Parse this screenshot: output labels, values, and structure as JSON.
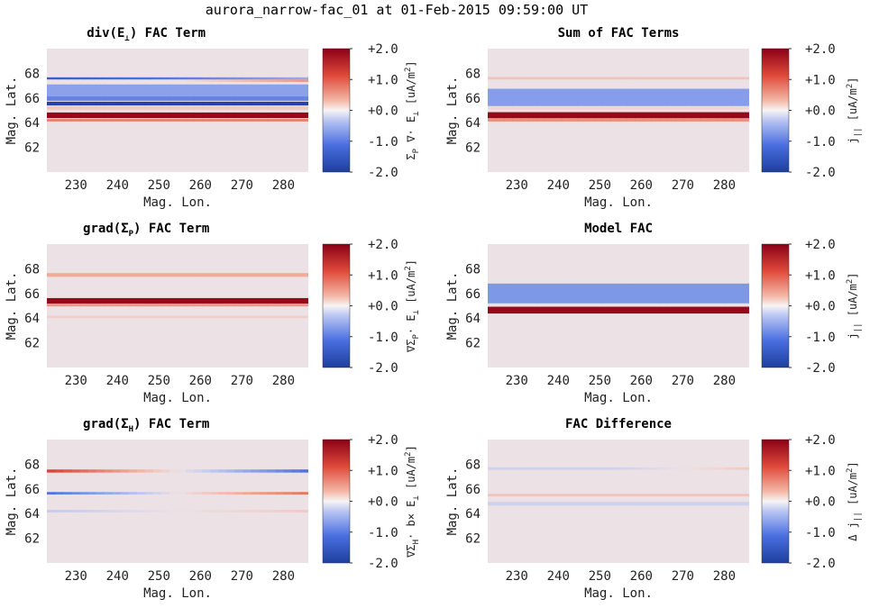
{
  "figure_title": "aurora_narrow-fac_01 at 01-Feb-2015 09:59:00 UT",
  "colors": {
    "background_plot": "#ece1e5",
    "blue_dark": "#1d3f9e",
    "red_dark": "#8b0016",
    "white_mid": "#f7f4f4"
  },
  "chart_data": [
    {
      "type": "heatmap",
      "title": "div(E⊥) FAC Term",
      "title_main": "div(E",
      "title_sub": "⊥",
      "title_rest": ") FAC Term",
      "xlabel": "Mag. Lon.",
      "ylabel": "Mag. Lat.",
      "xticks": [
        230,
        240,
        250,
        260,
        270,
        280
      ],
      "yticks": [
        62,
        64,
        66,
        68
      ],
      "xlim": [
        223,
        286
      ],
      "ylim": [
        60,
        70
      ],
      "clim": [
        -2.0,
        2.0
      ],
      "cbar_ticks": [
        "+2.0",
        "+1.0",
        "+0.0",
        "-1.0",
        "-2.0"
      ],
      "cbar_label": "Σ_P ∇· E_⊥ [uA/m^2]",
      "cbar_label_parts": [
        "Σ",
        "P",
        " ∇· E",
        "⊥",
        " [uA/m",
        "2",
        "]"
      ],
      "bands": [
        {
          "lat": 67.55,
          "width": 0.25,
          "value": -1.1,
          "west_value": -1.5,
          "east_value": -0.6
        },
        {
          "lat": 67.4,
          "width": 0.2,
          "value": 0.0,
          "east_value": 0.6
        },
        {
          "lat": 66.6,
          "width": 1.0,
          "value": -0.7
        },
        {
          "lat": 65.95,
          "width": 0.35,
          "value": -1.0
        },
        {
          "lat": 65.55,
          "width": 0.3,
          "value": -1.9
        },
        {
          "lat": 65.2,
          "width": 0.3,
          "value": 0.2
        },
        {
          "lat": 64.6,
          "width": 0.45,
          "value": 1.9
        },
        {
          "lat": 64.2,
          "width": 0.2,
          "value": 0.8
        }
      ]
    },
    {
      "type": "heatmap",
      "title": "Sum of FAC Terms",
      "title_main": "Sum of FAC Terms",
      "title_sub": "",
      "title_rest": "",
      "xlabel": "Mag. Lon.",
      "ylabel": "Mag. Lat.",
      "xticks": [
        230,
        240,
        250,
        260,
        270,
        280
      ],
      "yticks": [
        62,
        64,
        66,
        68
      ],
      "xlim": [
        223,
        286
      ],
      "ylim": [
        60,
        70
      ],
      "clim": [
        -2.0,
        2.0
      ],
      "cbar_ticks": [
        "+2.0",
        "+1.0",
        "+0.0",
        "-1.0",
        "-2.0"
      ],
      "cbar_label": "j_|| [uA/m^2]",
      "cbar_label_parts": [
        "j",
        "||",
        " [uA/m",
        "2",
        "]"
      ],
      "bands": [
        {
          "lat": 67.6,
          "width": 0.2,
          "value": 0.25
        },
        {
          "lat": 66.05,
          "width": 1.4,
          "value": -0.75
        },
        {
          "lat": 65.2,
          "width": 0.2,
          "value": 0.1
        },
        {
          "lat": 64.6,
          "width": 0.5,
          "value": 1.9
        },
        {
          "lat": 64.2,
          "width": 0.2,
          "value": 0.7
        }
      ]
    },
    {
      "type": "heatmap",
      "title": "grad(ΣP) FAC Term",
      "title_main": "grad(Σ",
      "title_sub": "P",
      "title_rest": ") FAC Term",
      "xlabel": "Mag. Lon.",
      "ylabel": "Mag. Lat.",
      "xticks": [
        230,
        240,
        250,
        260,
        270,
        280
      ],
      "yticks": [
        62,
        64,
        66,
        68
      ],
      "xlim": [
        223,
        286
      ],
      "ylim": [
        60,
        70
      ],
      "clim": [
        -2.0,
        2.0
      ],
      "cbar_ticks": [
        "+2.0",
        "+1.0",
        "+0.0",
        "-1.0",
        "-2.0"
      ],
      "cbar_label": "∇Σ_P· E_⊥ [uA/m^2]",
      "cbar_label_parts": [
        "∇Σ",
        "P",
        "· E",
        "⊥",
        " [uA/m",
        "2",
        "]"
      ],
      "bands": [
        {
          "lat": 67.5,
          "width": 0.3,
          "value": 0.45
        },
        {
          "lat": 65.4,
          "width": 0.45,
          "value": 1.9
        },
        {
          "lat": 65.05,
          "width": 0.2,
          "value": 0.6
        },
        {
          "lat": 64.1,
          "width": 0.2,
          "value": 0.15
        }
      ]
    },
    {
      "type": "heatmap",
      "title": "Model FAC",
      "title_main": "Model FAC",
      "title_sub": "",
      "title_rest": "",
      "xlabel": "Mag. Lon.",
      "ylabel": "Mag. Lat.",
      "xticks": [
        230,
        240,
        250,
        260,
        270,
        280
      ],
      "yticks": [
        62,
        64,
        66,
        68
      ],
      "xlim": [
        223,
        286
      ],
      "ylim": [
        60,
        70
      ],
      "clim": [
        -2.0,
        2.0
      ],
      "cbar_ticks": [
        "+2.0",
        "+1.0",
        "+0.0",
        "-1.0",
        "-2.0"
      ],
      "cbar_label": "j_|| [uA/m^2]",
      "cbar_label_parts": [
        "j",
        "||",
        " [uA/m",
        "2",
        "]"
      ],
      "bands": [
        {
          "lat": 66.0,
          "width": 1.6,
          "value": -0.8
        },
        {
          "lat": 64.65,
          "width": 0.55,
          "value": 1.9
        }
      ]
    },
    {
      "type": "heatmap",
      "title": "grad(ΣH) FAC Term",
      "title_main": "grad(Σ",
      "title_sub": "H",
      "title_rest": ") FAC Term",
      "xlabel": "Mag. Lon.",
      "ylabel": "Mag. Lat.",
      "xticks": [
        230,
        240,
        250,
        260,
        270,
        280
      ],
      "yticks": [
        62,
        64,
        66,
        68
      ],
      "xlim": [
        223,
        286
      ],
      "ylim": [
        60,
        70
      ],
      "clim": [
        -2.0,
        2.0
      ],
      "cbar_ticks": [
        "+2.0",
        "+1.0",
        "+0.0",
        "-1.0",
        "-2.0"
      ],
      "cbar_label": "∇Σ_H· b× E_⊥ [uA/m^2]",
      "cbar_label_parts": [
        "∇Σ",
        "H",
        "· b× E",
        "⊥",
        " [uA/m",
        "2",
        "]"
      ],
      "bands": [
        {
          "lat": 67.45,
          "width": 0.25,
          "value": 0.0,
          "west_value": 1.3,
          "east_value": -1.2
        },
        {
          "lat": 65.65,
          "width": 0.2,
          "value": 0.0,
          "west_value": -1.2,
          "east_value": 0.9
        },
        {
          "lat": 64.2,
          "width": 0.2,
          "value": 0.0,
          "west_value": -0.3,
          "east_value": 0.2
        }
      ]
    },
    {
      "type": "heatmap",
      "title": "FAC Difference",
      "title_main": "FAC Difference",
      "title_sub": "",
      "title_rest": "",
      "xlabel": "Mag. Lon.",
      "ylabel": "Mag. Lat.",
      "xticks": [
        230,
        240,
        250,
        260,
        270,
        280
      ],
      "yticks": [
        62,
        64,
        66,
        68
      ],
      "xlim": [
        223,
        286
      ],
      "ylim": [
        60,
        70
      ],
      "clim": [
        -2.0,
        2.0
      ],
      "cbar_ticks": [
        "+2.0",
        "+1.0",
        "+0.0",
        "-1.0",
        "-2.0"
      ],
      "cbar_label": "Δ j_|| [uA/m^2]",
      "cbar_label_parts": [
        "Δ j",
        "||",
        " [uA/m",
        "2",
        "]"
      ],
      "bands": [
        {
          "lat": 67.65,
          "width": 0.2,
          "value": -0.2,
          "east_value": 0.2
        },
        {
          "lat": 65.5,
          "width": 0.2,
          "value": 0.25
        },
        {
          "lat": 64.8,
          "width": 0.3,
          "value": -0.2
        }
      ]
    }
  ]
}
